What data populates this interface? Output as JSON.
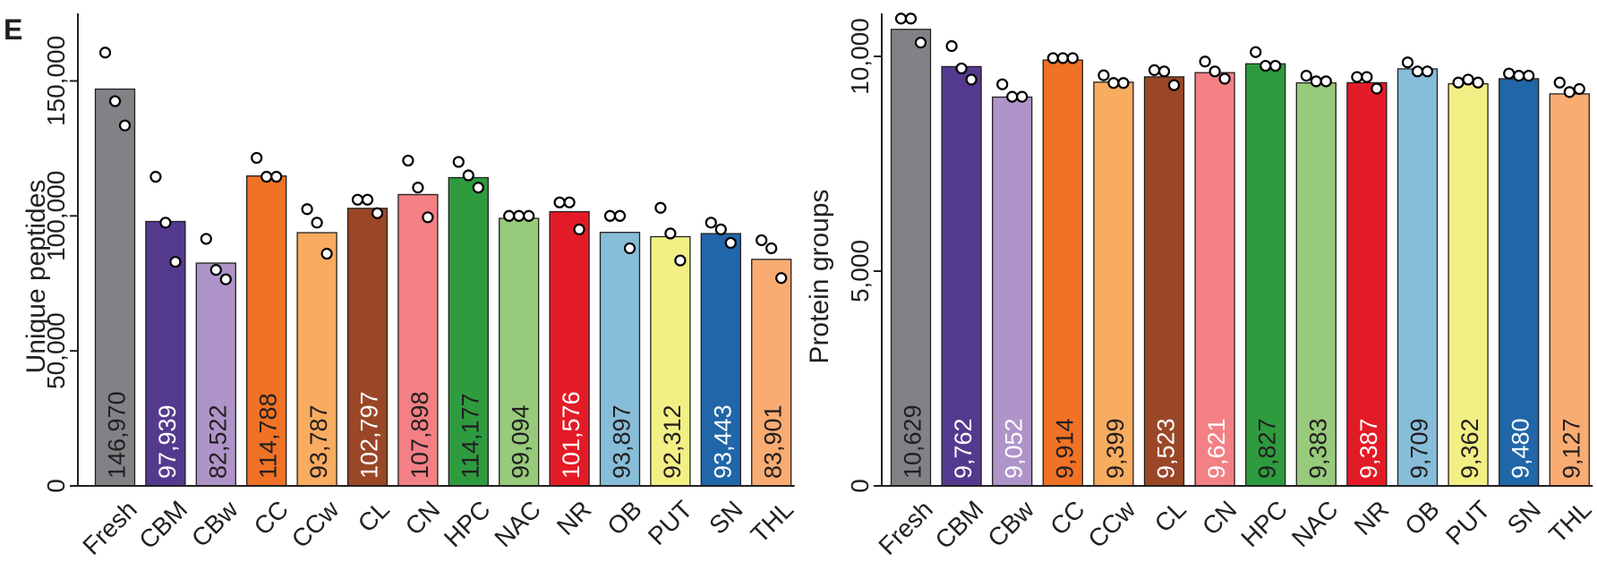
{
  "panel_label": "E",
  "chart_data": [
    {
      "type": "bar",
      "title": "",
      "xlabel": "",
      "ylabel": "Unique peptides",
      "ylim": [
        0,
        175000
      ],
      "yticks": [
        0,
        50000,
        100000,
        150000
      ],
      "ytick_labels": [
        "0",
        "50,000",
        "100,000",
        "150,000"
      ],
      "categories": [
        "Fresh",
        "CBM",
        "CBw",
        "CC",
        "CCw",
        "CL",
        "CN",
        "HPC",
        "NAC",
        "NR",
        "OB",
        "PUT",
        "SN",
        "THL"
      ],
      "values": [
        146970,
        97939,
        82522,
        114788,
        93787,
        102797,
        107898,
        114177,
        99094,
        101576,
        93897,
        92312,
        93443,
        83901
      ],
      "value_labels": [
        "146,970",
        "97,939",
        "82,522",
        "114,788",
        "93,787",
        "102,797",
        "107,898",
        "114,177",
        "99,094",
        "101,576",
        "93,897",
        "92,312",
        "93,443",
        "83,901"
      ],
      "replicates": [
        [
          160500,
          142500,
          133500
        ],
        [
          114500,
          97500,
          83000
        ],
        [
          91500,
          80000,
          76500
        ],
        [
          121500,
          114500,
          114500
        ],
        [
          102500,
          97500,
          86000
        ],
        [
          106000,
          106000,
          101000
        ],
        [
          120500,
          110500,
          99500
        ],
        [
          120000,
          115000,
          110500
        ],
        [
          100000,
          100000,
          100000
        ],
        [
          105000,
          105000,
          95000
        ],
        [
          100000,
          100000,
          88000
        ],
        [
          103000,
          93500,
          83500
        ],
        [
          97500,
          95000,
          90000
        ],
        [
          91000,
          88000,
          77000
        ]
      ],
      "bar_colors": [
        "#808285",
        "#543a8f",
        "#ae94c8",
        "#f07226",
        "#f8ac60",
        "#9a4728",
        "#f28085",
        "#2e9b3f",
        "#97cb7b",
        "#e31b26",
        "#87bdd8",
        "#f2ef85",
        "#2066a8",
        "#f8ac72"
      ],
      "label_colors": [
        "#231f20",
        "#ffffff",
        "#231f20",
        "#231f20",
        "#231f20",
        "#ffffff",
        "#231f20",
        "#231f20",
        "#231f20",
        "#ffffff",
        "#231f20",
        "#231f20",
        "#ffffff",
        "#231f20"
      ]
    },
    {
      "type": "bar",
      "title": "",
      "xlabel": "",
      "ylabel": "Protein groups",
      "ylim": [
        0,
        11000
      ],
      "yticks": [
        0,
        5000,
        10000
      ],
      "ytick_labels": [
        "0",
        "5,000",
        "10,000"
      ],
      "categories": [
        "Fresh",
        "CBM",
        "CBw",
        "CC",
        "CCw",
        "CL",
        "CN",
        "HPC",
        "NAC",
        "NR",
        "OB",
        "PUT",
        "SN",
        "THL"
      ],
      "values": [
        10629,
        9762,
        9052,
        9914,
        9399,
        9523,
        9621,
        9827,
        9383,
        9387,
        9709,
        9362,
        9480,
        9127
      ],
      "value_labels": [
        "10,629",
        "9,762",
        "9,052",
        "9,914",
        "9,399",
        "9,523",
        "9,621",
        "9,827",
        "9,383",
        "9,387",
        "9,709",
        "9,362",
        "9,480",
        "9,127"
      ],
      "replicates": [
        [
          10880,
          10880,
          10320
        ],
        [
          10240,
          9720,
          9460
        ],
        [
          9350,
          9060,
          9060
        ],
        [
          9960,
          9960,
          9960
        ],
        [
          9560,
          9380,
          9380
        ],
        [
          9680,
          9650,
          9330
        ],
        [
          9880,
          9650,
          9480
        ],
        [
          10100,
          9780,
          9780
        ],
        [
          9550,
          9420,
          9420
        ],
        [
          9520,
          9520,
          9250
        ],
        [
          9860,
          9650,
          9650
        ],
        [
          9390,
          9460,
          9390
        ],
        [
          9600,
          9550,
          9550
        ],
        [
          9390,
          9170,
          9240
        ]
      ],
      "bar_colors": [
        "#808285",
        "#543a8f",
        "#ae94c8",
        "#f07226",
        "#f8ac60",
        "#9a4728",
        "#f28085",
        "#2e9b3f",
        "#97cb7b",
        "#e31b26",
        "#87bdd8",
        "#f2ef85",
        "#2066a8",
        "#f8ac72"
      ],
      "label_colors": [
        "#231f20",
        "#ffffff",
        "#ffffff",
        "#231f20",
        "#231f20",
        "#ffffff",
        "#ffffff",
        "#231f20",
        "#231f20",
        "#ffffff",
        "#231f20",
        "#231f20",
        "#ffffff",
        "#231f20"
      ]
    }
  ]
}
